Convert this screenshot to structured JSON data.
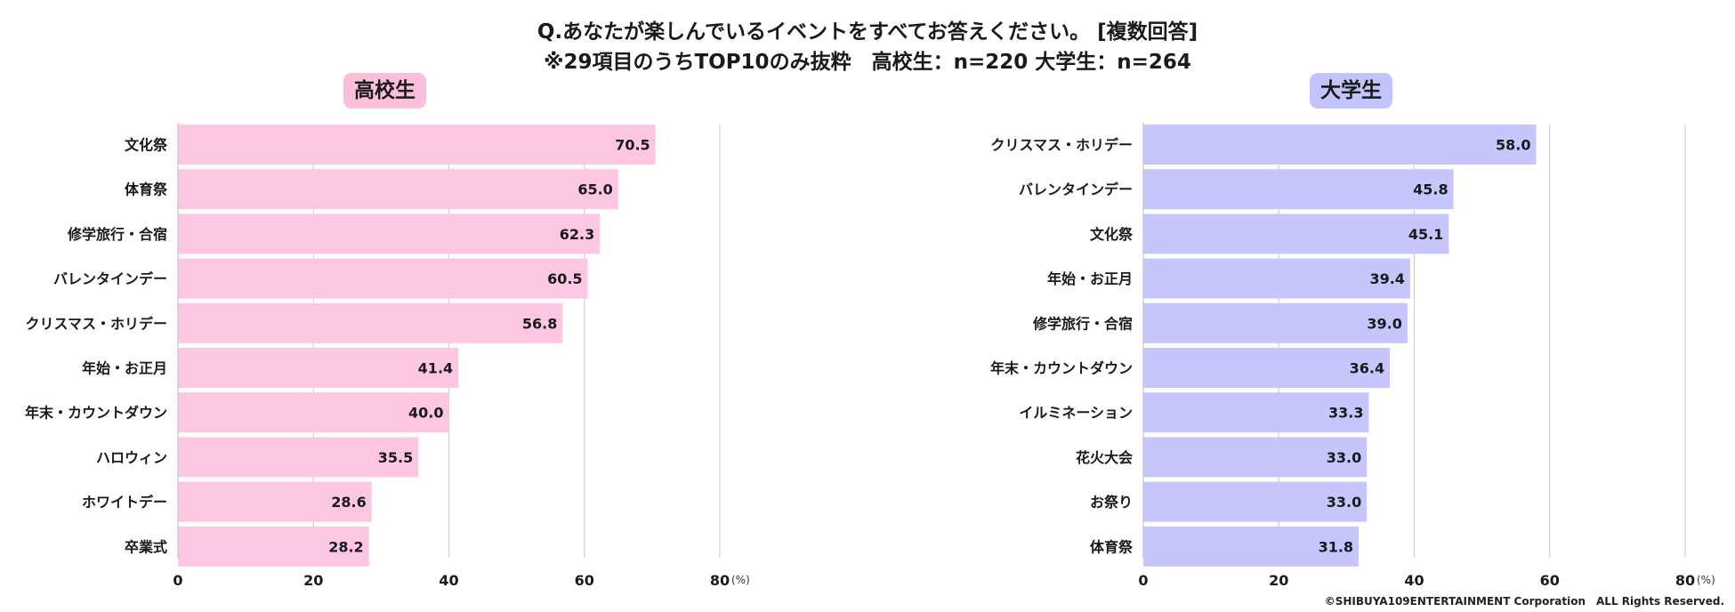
{
  "title_line1": "Q.あなたが楽しんでいるイベントをすべてお答えください。 [複数回答]",
  "title_line2": "※29項目のうちTOP10のみ抜粋　高校生：n=220  大学生：n=264",
  "credit": "©SHIBUYA109ENTERTAINMENT Corporation　ALL Rights Reserved.",
  "colors": {
    "left_bar": "#fdc6e1",
    "left_badge": "#fbbfdc",
    "right_bar": "#c6c6fc",
    "right_badge": "#c3c3fb",
    "grid": "#d0d0d0"
  },
  "chart_data": [
    {
      "type": "bar",
      "orientation": "horizontal",
      "panel_title": "高校生",
      "unit_label": "(%)",
      "xlim": [
        0,
        80
      ],
      "ticks": [
        0,
        20,
        40,
        60,
        80
      ],
      "categories": [
        "文化祭",
        "体育祭",
        "修学旅行・合宿",
        "バレンタインデー",
        "クリスマス・ホリデー",
        "年始・お正月",
        "年末・カウントダウン",
        "ハロウィン",
        "ホワイトデー",
        "卒業式"
      ],
      "values": [
        70.5,
        65.0,
        62.3,
        60.5,
        56.8,
        41.4,
        40.0,
        35.5,
        28.6,
        28.2
      ],
      "value_labels": [
        "70.5",
        "65.0",
        "62.3",
        "60.5",
        "56.8",
        "41.4",
        "40.0",
        "35.5",
        "28.6",
        "28.2"
      ],
      "grid": true
    },
    {
      "type": "bar",
      "orientation": "horizontal",
      "panel_title": "大学生",
      "unit_label": "(%)",
      "xlim": [
        0,
        80
      ],
      "ticks": [
        0,
        20,
        40,
        60,
        80
      ],
      "categories": [
        "クリスマス・ホリデー",
        "バレンタインデー",
        "文化祭",
        "年始・お正月",
        "修学旅行・合宿",
        "年末・カウントダウン",
        "イルミネーション",
        "花火大会",
        "お祭り",
        "体育祭"
      ],
      "values": [
        58.0,
        45.8,
        45.1,
        39.4,
        39.0,
        36.4,
        33.3,
        33.0,
        33.0,
        31.8
      ],
      "value_labels": [
        "58.0",
        "45.8",
        "45.1",
        "39.4",
        "39.0",
        "36.4",
        "33.3",
        "33.0",
        "33.0",
        "31.8"
      ],
      "grid": true
    }
  ]
}
